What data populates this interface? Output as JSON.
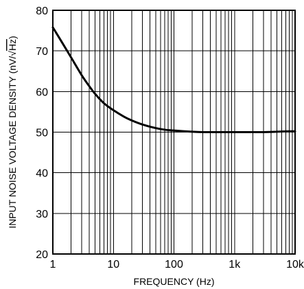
{
  "chart_data": {
    "type": "line",
    "xlabel": "FREQUENCY (Hz)",
    "ylabel": "INPUT NOISE VOLTAGE DENSITY (nV/√Hz)",
    "ylabel_parts": {
      "prefix": "INPUT NOISE VOLTAGE DENSITY (nV/",
      "radical": "√",
      "radicand": "Hz",
      "suffix": ")"
    },
    "x_scale": "log",
    "xlim": [
      1,
      10000
    ],
    "ylim": [
      20,
      80
    ],
    "grid": true,
    "x_ticks": [
      {
        "value": 1,
        "label": "1"
      },
      {
        "value": 10,
        "label": "10"
      },
      {
        "value": 100,
        "label": "100"
      },
      {
        "value": 1000,
        "label": "1k"
      },
      {
        "value": 10000,
        "label": "10k"
      }
    ],
    "y_ticks": [
      {
        "value": 20,
        "label": "20"
      },
      {
        "value": 30,
        "label": "30"
      },
      {
        "value": 40,
        "label": "40"
      },
      {
        "value": 50,
        "label": "50"
      },
      {
        "value": 60,
        "label": "60"
      },
      {
        "value": 70,
        "label": "70"
      },
      {
        "value": 80,
        "label": "80"
      }
    ],
    "series": [
      {
        "x": [
          1,
          1.5,
          2,
          3,
          4,
          5,
          7,
          10,
          15,
          20,
          30,
          50,
          70,
          100,
          200,
          300,
          500,
          700,
          1000,
          2000,
          3000,
          5000,
          7000,
          10000
        ],
        "y": [
          75.8,
          71.5,
          68.4,
          64.0,
          61.3,
          59.4,
          57.1,
          55.4,
          53.8,
          52.9,
          51.9,
          51.0,
          50.6,
          50.4,
          50.1,
          50.0,
          50.0,
          50.0,
          50.0,
          50.0,
          50.0,
          50.1,
          50.2,
          50.2
        ]
      }
    ]
  }
}
